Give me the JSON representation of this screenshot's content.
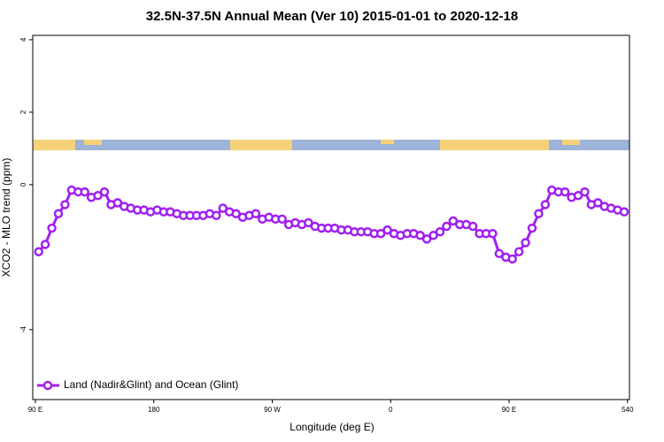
{
  "chart_data": {
    "type": "line",
    "title": "32.5N-37.5N Annual Mean (Ver 10)   2015-01-01 to 2020-12-18",
    "x_label": "Longitude (deg E)",
    "y_label": "XCO2 - MLO trend (ppm)",
    "x": [
      92.5,
      97.5,
      102.5,
      107.5,
      112.5,
      117.5,
      122.5,
      127.5,
      132.5,
      137.5,
      142.5,
      147.5,
      152.5,
      157.5,
      162.5,
      167.5,
      172.5,
      177.5,
      182.5,
      187.5,
      192.5,
      197.5,
      202.5,
      207.5,
      212.5,
      217.5,
      222.5,
      227.5,
      232.5,
      237.5,
      242.5,
      247.5,
      252.5,
      257.5,
      262.5,
      267.5,
      272.5,
      277.5,
      282.5,
      287.5,
      292.5,
      297.5,
      302.5,
      307.5,
      312.5,
      317.5,
      322.5,
      327.5,
      332.5,
      337.5,
      342.5,
      347.5,
      352.5,
      357.5,
      362.5,
      367.5,
      372.5,
      377.5,
      382.5,
      387.5,
      392.5,
      397.5,
      402.5,
      407.5,
      412.5,
      417.5,
      422.5,
      427.5,
      432.5,
      437.5,
      442.5,
      447.5,
      452.5,
      457.5,
      462.5,
      467.5,
      472.5,
      477.5,
      482.5,
      487.5,
      492.5,
      497.5,
      502.5,
      507.5,
      512.5,
      517.5,
      522.5,
      527.5,
      532.5,
      537.5
    ],
    "series": [
      {
        "name": "Land (Nadir&Glint) and Ocean (Glint)",
        "color": "#a020f0",
        "values": [
          -1.85,
          -1.65,
          -1.2,
          -0.8,
          -0.55,
          -0.15,
          -0.2,
          -0.2,
          -0.35,
          -0.3,
          -0.2,
          -0.55,
          -0.5,
          -0.6,
          -0.65,
          -0.7,
          -0.7,
          -0.75,
          -0.7,
          -0.75,
          -0.75,
          -0.8,
          -0.85,
          -0.85,
          -0.85,
          -0.85,
          -0.8,
          -0.85,
          -0.65,
          -0.75,
          -0.8,
          -0.9,
          -0.85,
          -0.8,
          -0.95,
          -0.9,
          -0.95,
          -0.95,
          -1.1,
          -1.05,
          -1.1,
          -1.05,
          -1.15,
          -1.2,
          -1.2,
          -1.2,
          -1.25,
          -1.25,
          -1.3,
          -1.3,
          -1.3,
          -1.35,
          -1.35,
          -1.25,
          -1.35,
          -1.4,
          -1.35,
          -1.35,
          -1.4,
          -1.5,
          -1.4,
          -1.3,
          -1.15,
          -1.0,
          -1.1,
          -1.1,
          -1.15,
          -1.35,
          -1.35,
          -1.35,
          -1.9,
          -2.0,
          -2.05,
          -1.85,
          -1.6,
          -1.2,
          -0.8,
          -0.55,
          -0.15,
          -0.2,
          -0.2,
          -0.35,
          -0.3,
          -0.2,
          -0.55,
          -0.5,
          -0.6,
          -0.65,
          -0.7,
          -0.75
        ]
      }
    ],
    "xlim": [
      88,
      541.5
    ],
    "xticks": [
      {
        "value": 90,
        "label": "90 E"
      },
      180,
      {
        "value": 270,
        "label": "90 W"
      },
      {
        "value": 360,
        "label": "0"
      },
      {
        "value": 450,
        "label": "90 E"
      },
      540
    ],
    "ylim": [
      -5.93,
      4.12
    ],
    "yticks": [
      4,
      2,
      0,
      -4
    ],
    "legend": "bottom-left"
  }
}
